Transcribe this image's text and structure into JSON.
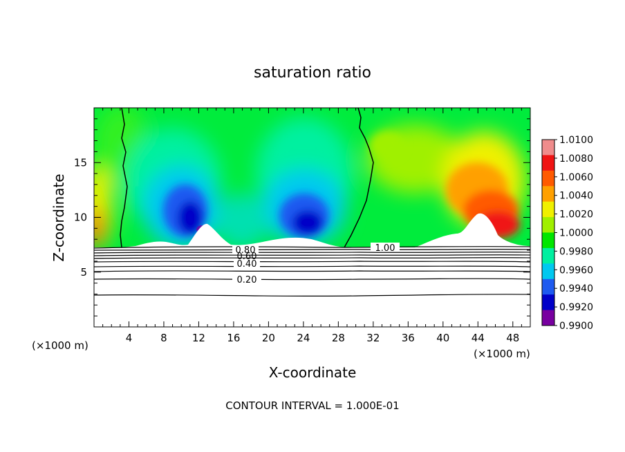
{
  "chart_data": {
    "type": "heatmap",
    "title": "saturation ratio",
    "xlabel": "X-coordinate",
    "ylabel": "Z-coordinate",
    "x_unit_left": "(×1000 m)",
    "x_unit_right": "(×1000 m)",
    "footer": "CONTOUR INTERVAL = 1.000E-01",
    "xlim": [
      0,
      50
    ],
    "ylim": [
      0,
      20
    ],
    "x_ticks": [
      4,
      8,
      12,
      16,
      20,
      24,
      28,
      32,
      36,
      40,
      44,
      48
    ],
    "y_ticks": [
      5,
      10,
      15
    ],
    "colorbar": {
      "levels": [
        "1.0100",
        "1.0080",
        "1.0060",
        "1.0040",
        "1.0020",
        "1.0000",
        "0.9980",
        "0.9960",
        "0.9940",
        "0.9920",
        "0.9900"
      ],
      "colors": [
        "#f08c8c",
        "#f01414",
        "#ff5a00",
        "#ffa000",
        "#f0f000",
        "#a0f000",
        "#00e600",
        "#00f0a0",
        "#00c8f0",
        "#1e5af0",
        "#0000c8",
        "#7800a0"
      ]
    },
    "contour_labels": [
      "0.20",
      "0.40",
      "0.60",
      "0.80",
      "1.00"
    ],
    "contour_values": [
      0.2,
      0.4,
      0.6,
      0.8,
      1.0
    ],
    "contour_interval": 0.1,
    "cloud_base_z": 7.4
  }
}
